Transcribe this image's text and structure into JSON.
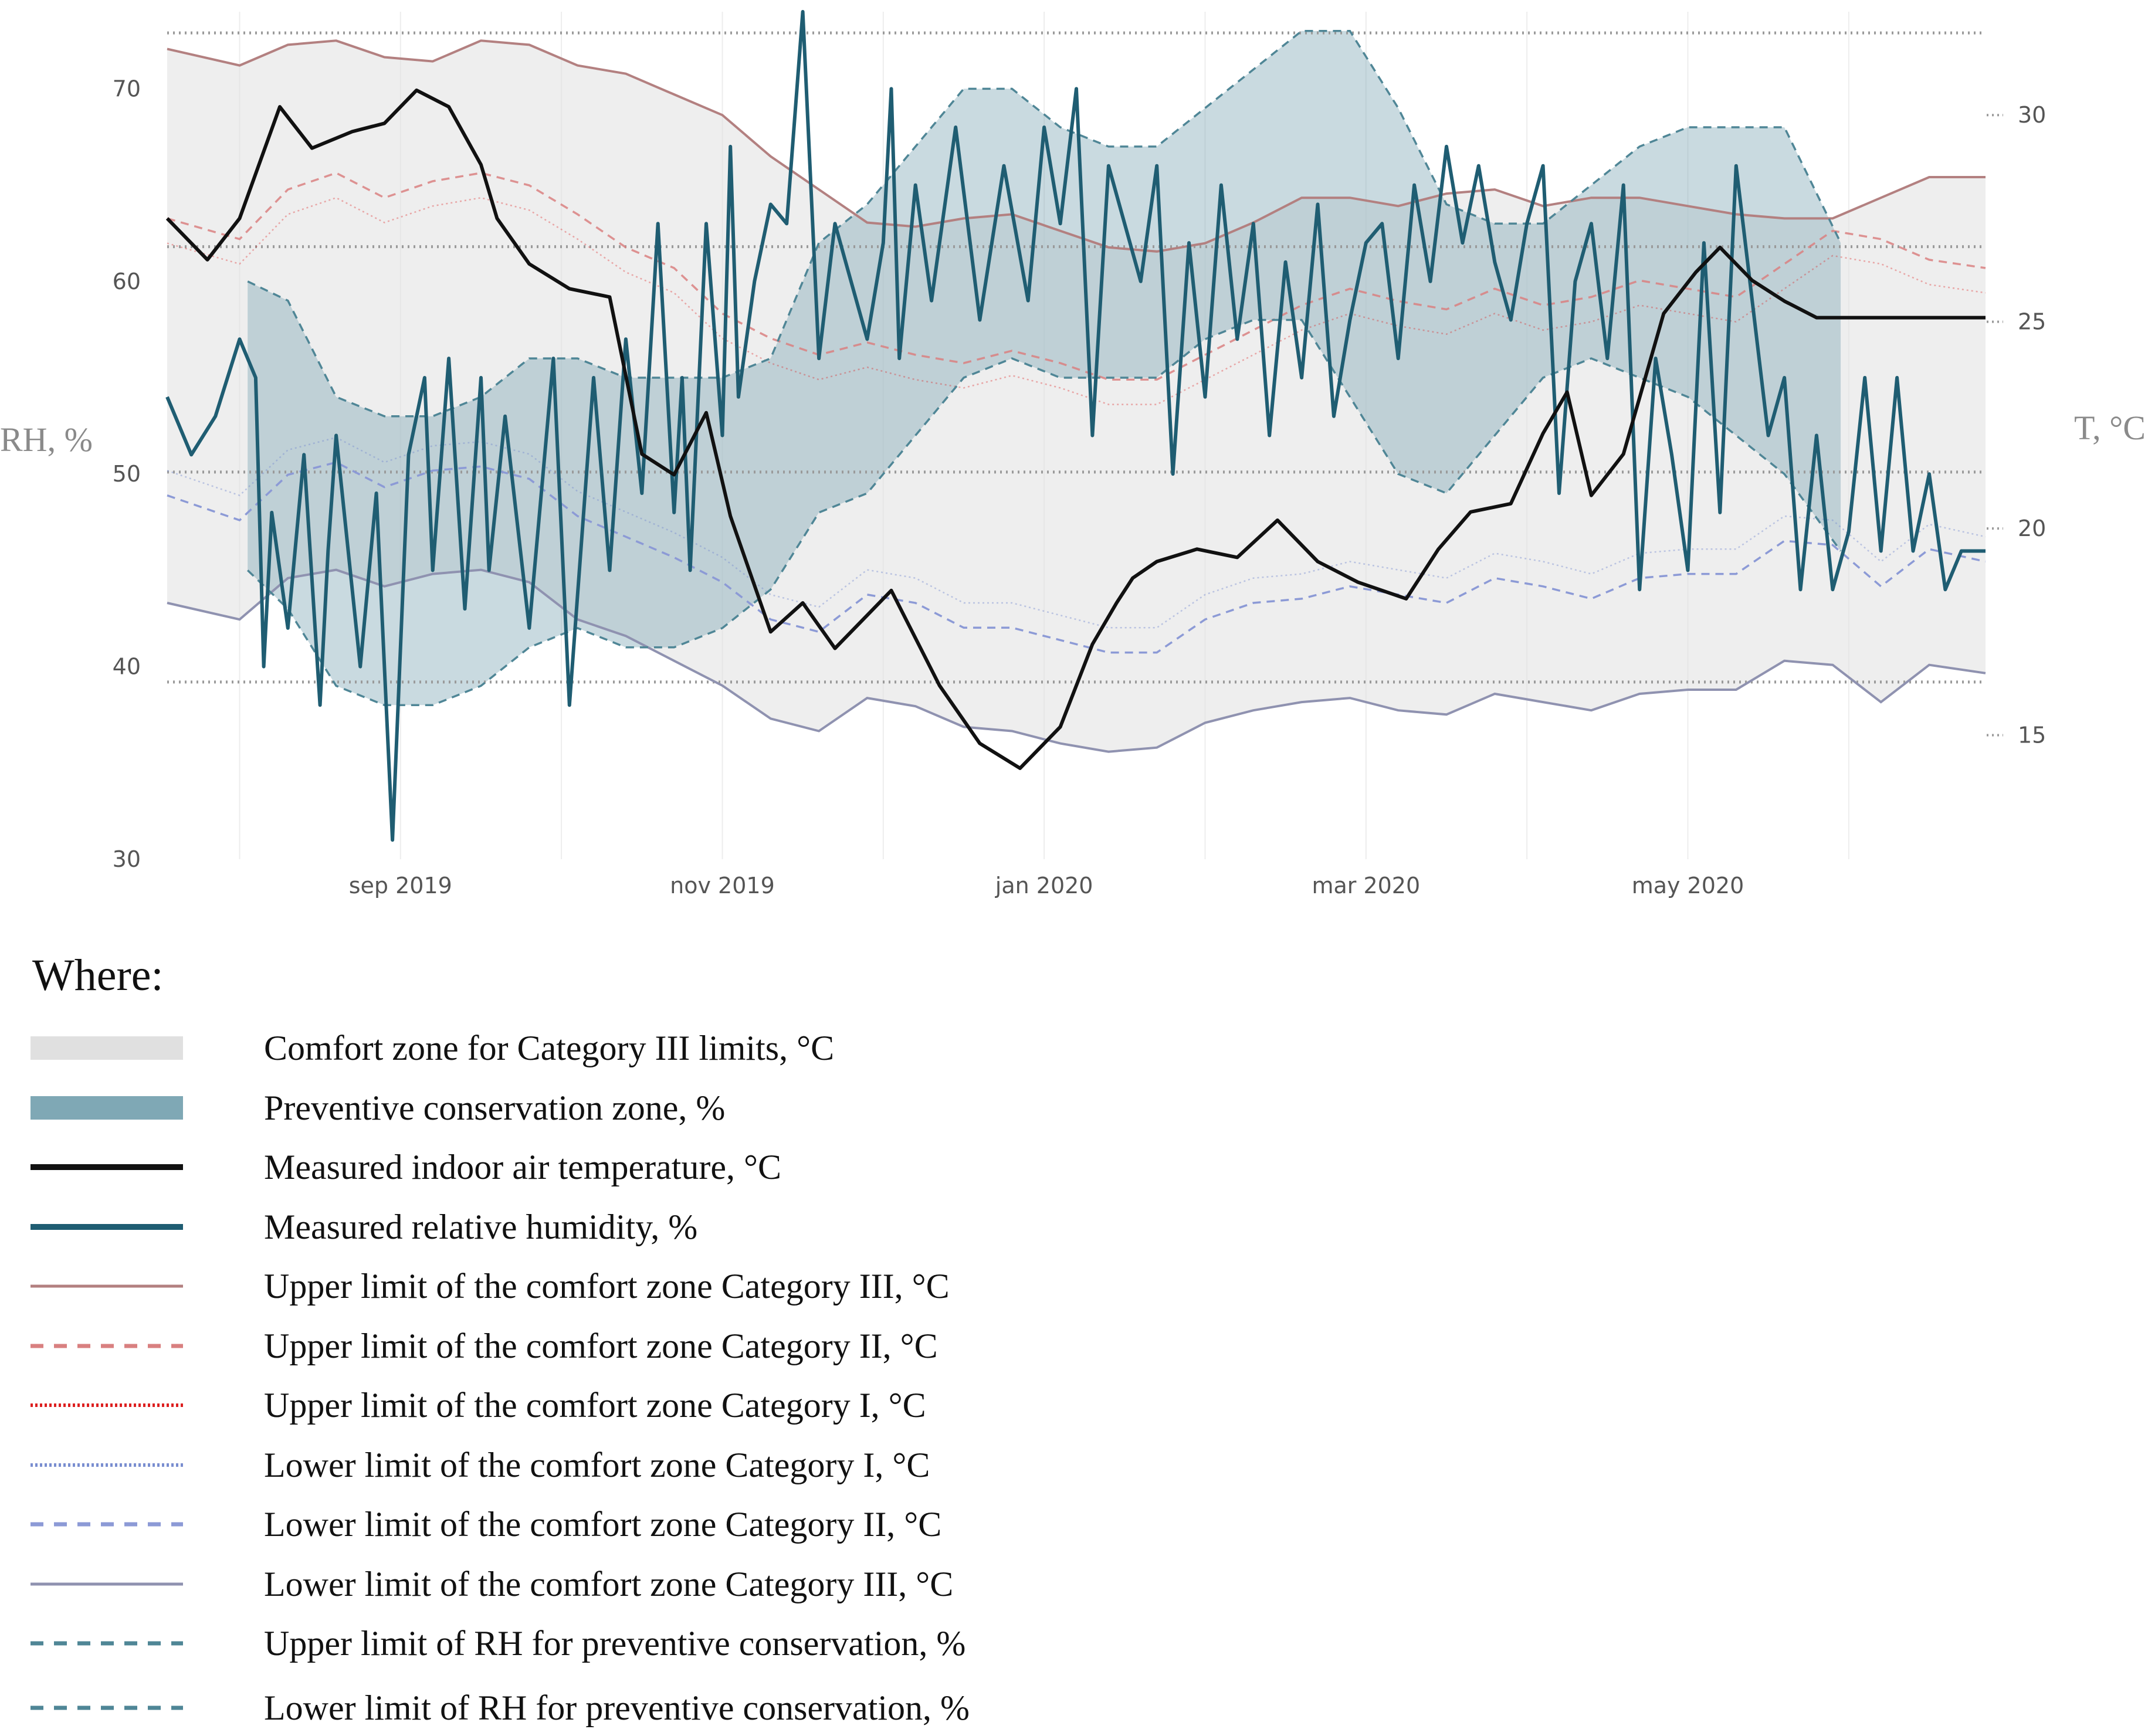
{
  "chart_data": {
    "type": "line",
    "title": "",
    "xlabel": "",
    "ylabel_left": "RH, %",
    "ylabel_right": "T, °C",
    "x_ticks": [
      "sep 2019",
      "nov 2019",
      "jan 2020",
      "mar 2020",
      "may 2020"
    ],
    "x_tick_months": [
      1,
      3,
      5,
      7,
      9
    ],
    "x_range_months": [
      -0.45,
      10.85
    ],
    "y_left_ticks": [
      30,
      40,
      50,
      60,
      70
    ],
    "y_left_range": [
      30,
      74
    ],
    "y_right_ticks": [
      15,
      20,
      25,
      30
    ],
    "y_right_range": [
      12,
      32.5
    ],
    "reference_lines_rh": [
      39.2,
      50.1,
      61.8,
      72.9
    ],
    "colors": {
      "comfort_zone": "#e0e0e0",
      "preventive_zone": "#7fa8b5",
      "temperature": "#111111",
      "humidity": "#1f5d72",
      "upper_iii": "#b38080",
      "upper_ii": "#d98080",
      "upper_i": "#dd2020",
      "lower_i": "#7a8ed0",
      "lower_ii": "#8c9ad6",
      "lower_iii": "#8f92b0",
      "rh_limits": "#4f8696"
    },
    "series": [
      {
        "name": "Measured indoor air temperature",
        "axis": "T",
        "style": "temperature",
        "x": [
          -0.45,
          -0.2,
          0,
          0.25,
          0.45,
          0.7,
          0.9,
          1.1,
          1.3,
          1.5,
          1.6,
          1.8,
          2.05,
          2.3,
          2.5,
          2.7,
          2.9,
          3.05,
          3.3,
          3.5,
          3.7,
          3.9,
          4.05,
          4.35,
          4.6,
          4.85,
          5.1,
          5.3,
          5.45,
          5.55,
          5.7,
          5.95,
          6.2,
          6.45,
          6.7,
          6.95,
          7.25,
          7.45,
          7.65,
          7.9,
          8.1,
          8.25,
          8.4,
          8.6,
          8.85,
          9.05,
          9.2,
          9.4,
          9.6,
          9.8,
          10.05,
          10.3,
          10.55,
          10.85
        ],
        "y": [
          27.5,
          26.5,
          27.5,
          30.2,
          29.2,
          29.6,
          29.8,
          30.6,
          30.2,
          28.8,
          27.5,
          26.4,
          25.8,
          25.6,
          21.8,
          21.3,
          22.8,
          20.3,
          17.5,
          18.2,
          17.1,
          17.9,
          18.5,
          16.2,
          14.8,
          14.2,
          15.2,
          17.2,
          18.2,
          18.8,
          19.2,
          19.5,
          19.3,
          20.2,
          19.2,
          18.7,
          18.3,
          19.5,
          20.4,
          20.6,
          22.3,
          23.3,
          20.8,
          21.8,
          25.2,
          26.2,
          26.8,
          26.0,
          25.5,
          25.1,
          25.1,
          25.1,
          25.1,
          25.1
        ]
      },
      {
        "name": "Measured relative humidity",
        "axis": "RH",
        "style": "humidity",
        "x": [
          -0.45,
          -0.3,
          -0.15,
          0,
          0.1,
          0.15,
          0.2,
          0.3,
          0.4,
          0.5,
          0.55,
          0.6,
          0.75,
          0.85,
          0.95,
          1.05,
          1.15,
          1.2,
          1.3,
          1.4,
          1.5,
          1.55,
          1.65,
          1.8,
          1.95,
          2.05,
          2.2,
          2.3,
          2.4,
          2.5,
          2.6,
          2.7,
          2.75,
          2.8,
          2.9,
          3.0,
          3.05,
          3.1,
          3.2,
          3.3,
          3.4,
          3.5,
          3.6,
          3.7,
          3.8,
          3.9,
          4.0,
          4.05,
          4.1,
          4.2,
          4.3,
          4.45,
          4.6,
          4.75,
          4.9,
          5.0,
          5.1,
          5.2,
          5.3,
          5.4,
          5.5,
          5.6,
          5.7,
          5.8,
          5.9,
          6.0,
          6.1,
          6.2,
          6.3,
          6.4,
          6.5,
          6.6,
          6.7,
          6.8,
          6.9,
          7.0,
          7.1,
          7.2,
          7.3,
          7.4,
          7.5,
          7.6,
          7.7,
          7.8,
          7.9,
          8.0,
          8.1,
          8.2,
          8.3,
          8.4,
          8.5,
          8.6,
          8.7,
          8.8,
          8.9,
          9.0,
          9.1,
          9.2,
          9.3,
          9.4,
          9.5,
          9.6,
          9.7,
          9.8,
          9.9,
          10.0,
          10.1,
          10.2,
          10.3,
          10.4,
          10.5,
          10.6,
          10.7,
          10.85
        ],
        "y": [
          54,
          51,
          53,
          57,
          55,
          40,
          48,
          42,
          51,
          38,
          46,
          52,
          40,
          49,
          31,
          51,
          55,
          45,
          56,
          43,
          55,
          45,
          53,
          42,
          56,
          38,
          55,
          45,
          57,
          49,
          63,
          48,
          55,
          45,
          63,
          52,
          67,
          54,
          60,
          64,
          63,
          74,
          56,
          63,
          60,
          57,
          62,
          70,
          56,
          65,
          59,
          68,
          58,
          66,
          59,
          68,
          63,
          70,
          52,
          66,
          63,
          60,
          66,
          50,
          62,
          54,
          65,
          57,
          63,
          52,
          61,
          55,
          64,
          53,
          58,
          62,
          63,
          56,
          65,
          60,
          67,
          62,
          66,
          61,
          58,
          63,
          66,
          49,
          60,
          63,
          56,
          65,
          44,
          56,
          51,
          45,
          62,
          48,
          66,
          59,
          52,
          55,
          44,
          52,
          44,
          47,
          55,
          46,
          55,
          46,
          50,
          44,
          46,
          46
        ]
      },
      {
        "name": "Upper limit of the comfort zone Category III",
        "axis": "T",
        "style": "upper_iii",
        "x": [
          -0.45,
          0,
          0.3,
          0.6,
          0.9,
          1.2,
          1.5,
          1.8,
          2.1,
          2.4,
          2.7,
          3.0,
          3.3,
          3.6,
          3.9,
          4.2,
          4.5,
          4.8,
          5.1,
          5.4,
          5.7,
          6.0,
          6.3,
          6.6,
          6.9,
          7.2,
          7.5,
          7.8,
          8.1,
          8.4,
          8.7,
          9.0,
          9.3,
          9.6,
          9.9,
          10.2,
          10.5,
          10.85
        ],
        "y": [
          31.6,
          31.2,
          31.7,
          31.8,
          31.4,
          31.3,
          31.8,
          31.7,
          31.2,
          31.0,
          30.5,
          30.0,
          29.0,
          28.2,
          27.4,
          27.3,
          27.5,
          27.6,
          27.2,
          26.8,
          26.7,
          26.9,
          27.4,
          28.0,
          28.0,
          27.8,
          28.1,
          28.2,
          27.8,
          28.0,
          28.0,
          27.8,
          27.6,
          27.5,
          27.5,
          28.0,
          28.5,
          28.5
        ]
      },
      {
        "name": "Upper limit of the comfort zone Category II",
        "axis": "T",
        "style": "upper_ii",
        "x": [
          -0.45,
          0,
          0.3,
          0.6,
          0.9,
          1.2,
          1.5,
          1.8,
          2.1,
          2.4,
          2.7,
          3.0,
          3.3,
          3.6,
          3.9,
          4.2,
          4.5,
          4.8,
          5.1,
          5.4,
          5.7,
          6.0,
          6.3,
          6.6,
          6.9,
          7.2,
          7.5,
          7.8,
          8.1,
          8.4,
          8.7,
          9.0,
          9.3,
          9.6,
          9.9,
          10.2,
          10.5,
          10.85
        ],
        "y": [
          27.5,
          27.0,
          28.2,
          28.6,
          28.0,
          28.4,
          28.6,
          28.3,
          27.6,
          26.8,
          26.3,
          25.2,
          24.6,
          24.2,
          24.5,
          24.2,
          24.0,
          24.3,
          24.0,
          23.6,
          23.6,
          24.2,
          24.8,
          25.4,
          25.8,
          25.5,
          25.3,
          25.8,
          25.4,
          25.6,
          26.0,
          25.8,
          25.6,
          26.4,
          27.2,
          27.0,
          26.5,
          26.3
        ]
      },
      {
        "name": "Lower limit of the comfort zone Category II",
        "axis": "T",
        "style": "lower_ii",
        "x": [
          -0.45,
          0,
          0.3,
          0.6,
          0.9,
          1.2,
          1.5,
          1.8,
          2.1,
          2.4,
          2.7,
          3.0,
          3.3,
          3.6,
          3.9,
          4.2,
          4.5,
          4.8,
          5.1,
          5.4,
          5.7,
          6.0,
          6.3,
          6.6,
          6.9,
          7.2,
          7.5,
          7.8,
          8.1,
          8.4,
          8.7,
          9.0,
          9.3,
          9.6,
          9.9,
          10.2,
          10.5,
          10.85
        ],
        "y": [
          20.8,
          20.2,
          21.3,
          21.6,
          21.0,
          21.4,
          21.5,
          21.2,
          20.3,
          19.8,
          19.3,
          18.7,
          17.8,
          17.5,
          18.4,
          18.2,
          17.6,
          17.6,
          17.3,
          17.0,
          17.0,
          17.8,
          18.2,
          18.3,
          18.6,
          18.4,
          18.2,
          18.8,
          18.6,
          18.3,
          18.8,
          18.9,
          18.9,
          19.7,
          19.6,
          18.6,
          19.5,
          19.2
        ]
      },
      {
        "name": "Lower limit of the comfort zone Category III",
        "axis": "T",
        "style": "lower_iii",
        "x": [
          -0.45,
          0,
          0.3,
          0.6,
          0.9,
          1.2,
          1.5,
          1.8,
          2.1,
          2.4,
          2.7,
          3.0,
          3.3,
          3.6,
          3.9,
          4.2,
          4.5,
          4.8,
          5.1,
          5.4,
          5.7,
          6.0,
          6.3,
          6.6,
          6.9,
          7.2,
          7.5,
          7.8,
          8.1,
          8.4,
          8.7,
          9.0,
          9.3,
          9.6,
          9.9,
          10.2,
          10.5,
          10.85
        ],
        "y": [
          18.2,
          17.8,
          18.8,
          19.0,
          18.6,
          18.9,
          19.0,
          18.7,
          17.8,
          17.4,
          16.8,
          16.2,
          15.4,
          15.1,
          15.9,
          15.7,
          15.2,
          15.1,
          14.8,
          14.6,
          14.7,
          15.3,
          15.6,
          15.8,
          15.9,
          15.6,
          15.5,
          16.0,
          15.8,
          15.6,
          16.0,
          16.1,
          16.1,
          16.8,
          16.7,
          15.8,
          16.7,
          16.5
        ]
      },
      {
        "name": "Upper limit of RH for preventive conservation",
        "axis": "RH",
        "style": "rh_limits",
        "x": [
          0.05,
          0.3,
          0.6,
          0.9,
          1.2,
          1.5,
          1.8,
          2.1,
          2.4,
          2.7,
          3.0,
          3.3,
          3.6,
          3.9,
          4.2,
          4.5,
          4.8,
          5.1,
          5.4,
          5.7,
          6.0,
          6.3,
          6.6,
          6.9,
          7.2,
          7.5,
          7.8,
          8.1,
          8.4,
          8.7,
          9.0,
          9.3,
          9.6,
          9.95
        ],
        "y": [
          60,
          59,
          54,
          53,
          53,
          54,
          56,
          56,
          55,
          55,
          55,
          56,
          62,
          64,
          67,
          70,
          70,
          68,
          67,
          67,
          69,
          71,
          73,
          73,
          69,
          64,
          63,
          63,
          65,
          67,
          68,
          68,
          68,
          62
        ]
      },
      {
        "name": "Lower limit of RH for preventive conservation",
        "axis": "RH",
        "style": "rh_limits",
        "x": [
          0.05,
          0.3,
          0.6,
          0.9,
          1.2,
          1.5,
          1.8,
          2.1,
          2.4,
          2.7,
          3.0,
          3.3,
          3.6,
          3.9,
          4.2,
          4.5,
          4.8,
          5.1,
          5.4,
          5.7,
          6.0,
          6.3,
          6.6,
          6.9,
          7.2,
          7.5,
          7.8,
          8.1,
          8.4,
          8.7,
          9.0,
          9.3,
          9.6,
          9.95
        ],
        "y": [
          45,
          43,
          39,
          38,
          38,
          39,
          41,
          42,
          41,
          41,
          42,
          44,
          48,
          49,
          52,
          55,
          56,
          55,
          55,
          55,
          57,
          58,
          58,
          54,
          50,
          49,
          52,
          55,
          56,
          55,
          54,
          52,
          50,
          46
        ]
      }
    ],
    "legend_heading": "Where:",
    "legend": [
      {
        "label": "Comfort zone for Category III limits, °C",
        "style": "comfort_zone",
        "kind": "block"
      },
      {
        "label": "Preventive conservation zone, %",
        "style": "preventive_zone",
        "kind": "block"
      },
      {
        "label": "Measured indoor air temperature, °C",
        "style": "temperature",
        "kind": "solid"
      },
      {
        "label": "Measured relative humidity, %",
        "style": "humidity",
        "kind": "solid"
      },
      {
        "label": "Upper limit of the comfort zone Category III, °C",
        "style": "upper_iii",
        "kind": "thin"
      },
      {
        "label": "Upper limit of the comfort zone Category II, °C",
        "style": "upper_ii",
        "kind": "dashed"
      },
      {
        "label": "Upper limit of the comfort zone Category I, °C",
        "style": "upper_i",
        "kind": "dotted"
      },
      {
        "label": "Lower limit of the comfort zone Category I, °C",
        "style": "lower_i",
        "kind": "dotted"
      },
      {
        "label": "Lower limit of the comfort zone Category II, °C",
        "style": "lower_ii",
        "kind": "dashed"
      },
      {
        "label": "Lower limit of the comfort zone Category III, °C",
        "style": "lower_iii",
        "kind": "thin"
      },
      {
        "label": "Upper limit of RH for preventive conservation, %",
        "style": "rh_limits",
        "kind": "dashed"
      },
      {
        "label": "Lower limit of RH for preventive conservation, %",
        "style": "rh_limits",
        "kind": "dashed"
      }
    ]
  }
}
